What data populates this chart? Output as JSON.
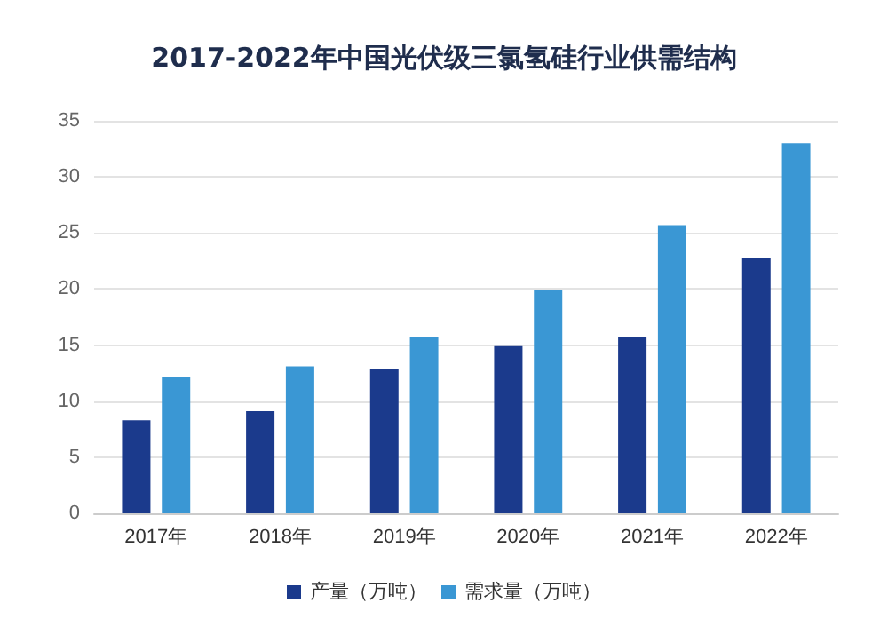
{
  "chart_data": {
    "type": "bar",
    "title": "2017-2022年中国光伏级三氯氢硅行业供需结构",
    "categories": [
      "2017年",
      "2018年",
      "2019年",
      "2020年",
      "2021年",
      "2022年"
    ],
    "series": [
      {
        "name": "产量（万吨）",
        "color": "#1b3a8c",
        "values": [
          8.3,
          9.1,
          12.9,
          14.9,
          15.7,
          22.8
        ]
      },
      {
        "name": "需求量（万吨）",
        "color": "#3a97d4",
        "values": [
          12.2,
          13.1,
          15.7,
          19.9,
          25.7,
          33.0
        ]
      }
    ],
    "ylim": [
      0,
      35
    ],
    "yticks": [
      0,
      5,
      10,
      15,
      20,
      25,
      30,
      35
    ],
    "grid": "y",
    "legend": "bottom"
  }
}
